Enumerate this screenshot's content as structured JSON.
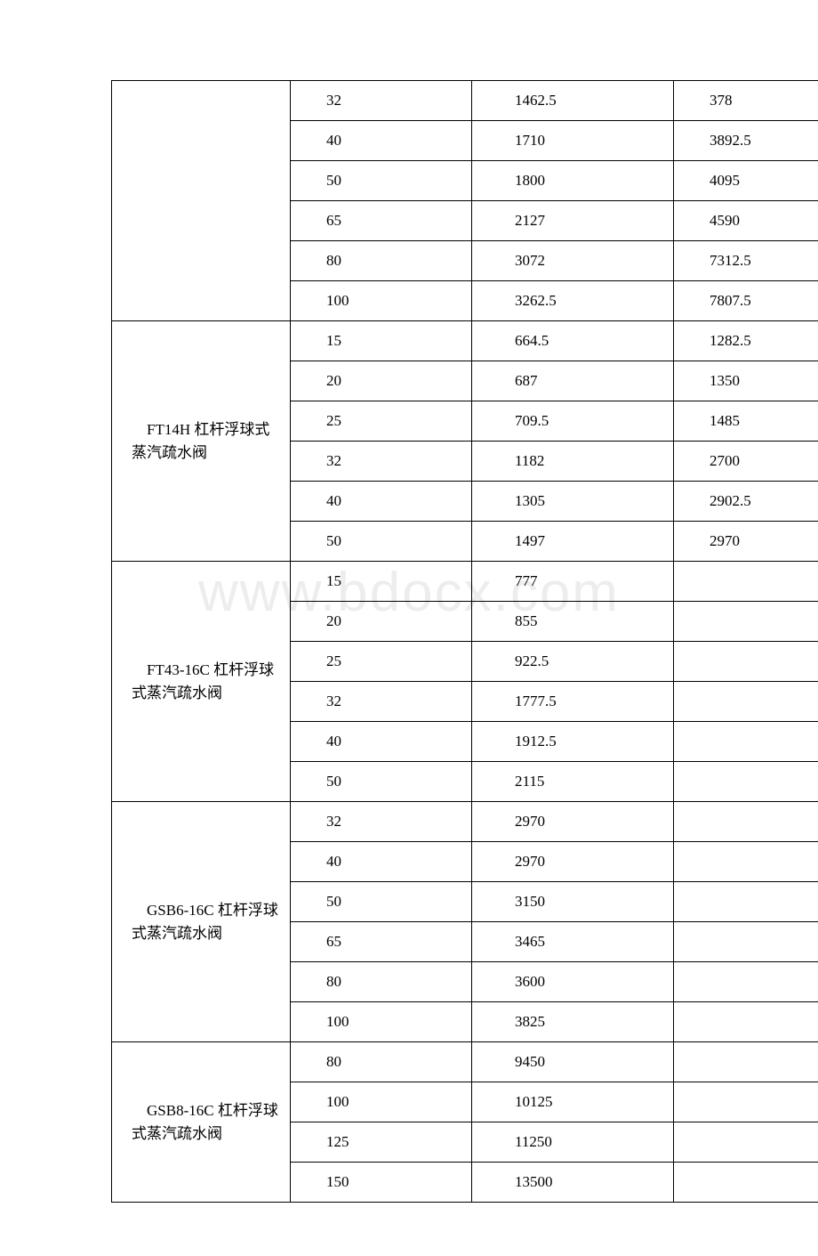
{
  "watermark": "www.bdocx.com",
  "groups": [
    {
      "name": "",
      "rows": [
        {
          "c2": "32",
          "c3": "1462.5",
          "c4": "378"
        },
        {
          "c2": "40",
          "c3": "1710",
          "c4": "3892.5"
        },
        {
          "c2": "50",
          "c3": "1800",
          "c4": "4095"
        },
        {
          "c2": "65",
          "c3": "2127",
          "c4": "4590"
        },
        {
          "c2": "80",
          "c3": "3072",
          "c4": "7312.5"
        },
        {
          "c2": "100",
          "c3": "3262.5",
          "c4": "7807.5"
        }
      ]
    },
    {
      "name": "　FT14H 杠杆浮球式蒸汽疏水阀",
      "rows": [
        {
          "c2": "15",
          "c3": "664.5",
          "c4": "1282.5"
        },
        {
          "c2": "20",
          "c3": "687",
          "c4": "1350"
        },
        {
          "c2": "25",
          "c3": "709.5",
          "c4": "1485"
        },
        {
          "c2": "32",
          "c3": "1182",
          "c4": "2700"
        },
        {
          "c2": "40",
          "c3": "1305",
          "c4": "2902.5"
        },
        {
          "c2": "50",
          "c3": "1497",
          "c4": "2970"
        }
      ]
    },
    {
      "name": "　FT43-16C 杠杆浮球式蒸汽疏水阀",
      "rows": [
        {
          "c2": "15",
          "c3": "777",
          "c4": ""
        },
        {
          "c2": "20",
          "c3": "855",
          "c4": ""
        },
        {
          "c2": "25",
          "c3": "922.5",
          "c4": ""
        },
        {
          "c2": "32",
          "c3": "1777.5",
          "c4": ""
        },
        {
          "c2": "40",
          "c3": "1912.5",
          "c4": ""
        },
        {
          "c2": "50",
          "c3": "2115",
          "c4": ""
        }
      ]
    },
    {
      "name": "　GSB6-16C 杠杆浮球式蒸汽疏水阀",
      "rows": [
        {
          "c2": "32",
          "c3": "2970",
          "c4": ""
        },
        {
          "c2": "40",
          "c3": "2970",
          "c4": ""
        },
        {
          "c2": "50",
          "c3": "3150",
          "c4": ""
        },
        {
          "c2": "65",
          "c3": "3465",
          "c4": ""
        },
        {
          "c2": "80",
          "c3": "3600",
          "c4": ""
        },
        {
          "c2": "100",
          "c3": "3825",
          "c4": ""
        }
      ]
    },
    {
      "name": "　GSB8-16C 杠杆浮球式蒸汽疏水阀",
      "rows": [
        {
          "c2": "80",
          "c3": "9450",
          "c4": ""
        },
        {
          "c2": "100",
          "c3": "10125",
          "c4": ""
        },
        {
          "c2": "125",
          "c3": "11250",
          "c4": ""
        },
        {
          "c2": "150",
          "c3": "13500",
          "c4": ""
        }
      ]
    }
  ]
}
